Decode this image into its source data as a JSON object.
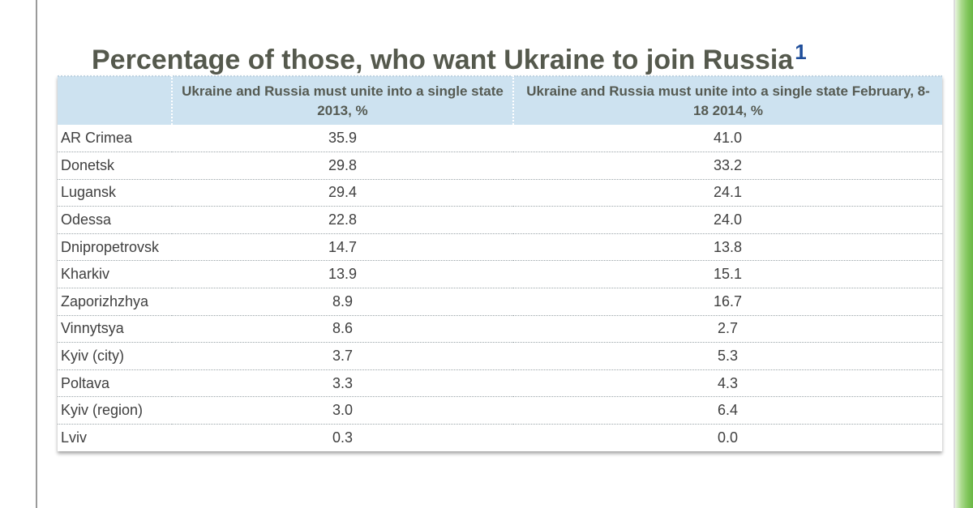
{
  "title": {
    "text": "Percentage of those, who want Ukraine to join Russia",
    "footnote": "1"
  },
  "table": {
    "headers": [
      "",
      "Ukraine and Russia must unite into a single state 2013, %",
      "Ukraine and Russia must unite into a single state February, 8-18 2014, %"
    ],
    "rows": [
      {
        "region": "AR Crimea",
        "y2013": "35.9",
        "y2014": "41.0"
      },
      {
        "region": "Donetsk",
        "y2013": "29.8",
        "y2014": "33.2"
      },
      {
        "region": "Lugansk",
        "y2013": "29.4",
        "y2014": "24.1"
      },
      {
        "region": "Odessa",
        "y2013": "22.8",
        "y2014": "24.0"
      },
      {
        "region": "Dnipropetrovsk",
        "y2013": "14.7",
        "y2014": "13.8"
      },
      {
        "region": "Kharkiv",
        "y2013": "13.9",
        "y2014": "15.1"
      },
      {
        "region": "Zaporizhzhya",
        "y2013": "8.9",
        "y2014": "16.7"
      },
      {
        "region": "Vinnytsya",
        "y2013": "8.6",
        "y2014": "2.7"
      },
      {
        "region": "Kyiv (city)",
        "y2013": "3.7",
        "y2014": "5.3"
      },
      {
        "region": "Poltava",
        "y2013": "3.3",
        "y2014": "4.3"
      },
      {
        "region": "Kyiv (region)",
        "y2013": "3.0",
        "y2014": "6.4"
      },
      {
        "region": "Lviv",
        "y2013": "0.3",
        "y2014": "0.0"
      }
    ]
  },
  "colors": {
    "title": "#55594d",
    "footnote": "#1f4e9a",
    "header_bg": "#cde2f0",
    "accent_bar": "#7fc55a"
  }
}
